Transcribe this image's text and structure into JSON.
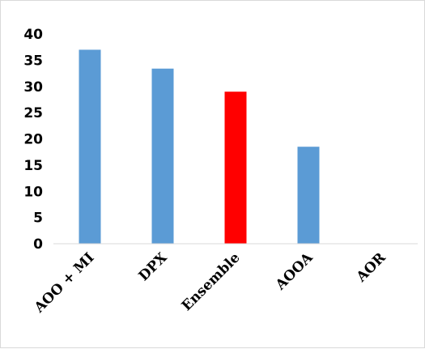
{
  "chart_data": {
    "type": "bar",
    "categories": [
      "AOO + MI",
      "DPX",
      "Ensemble",
      "AOOA",
      "AOR"
    ],
    "values": [
      37,
      33.4,
      29,
      18.5,
      0
    ],
    "colors": [
      "#5b9bd5",
      "#5b9bd5",
      "#ff0000",
      "#5b9bd5",
      "#5b9bd5"
    ],
    "ylim": [
      0,
      40
    ],
    "yticks": [
      0,
      5,
      10,
      15,
      20,
      25,
      30,
      35,
      40
    ],
    "grid": false,
    "legend": "none",
    "title": "",
    "xlabel": "",
    "ylabel": ""
  }
}
